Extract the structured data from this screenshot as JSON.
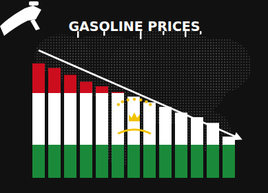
{
  "chart_data": {
    "type": "bar",
    "title": "GASOLINE PRICES",
    "categories": [
      null,
      null,
      null,
      null,
      null,
      null,
      null,
      null,
      null,
      null,
      null,
      null,
      null
    ],
    "values": [
      100,
      96,
      90,
      84,
      80,
      75,
      71,
      66,
      62,
      57,
      53,
      48,
      36
    ],
    "ylim": [
      0,
      100
    ],
    "tick_labels": false,
    "grid": false
  }
}
